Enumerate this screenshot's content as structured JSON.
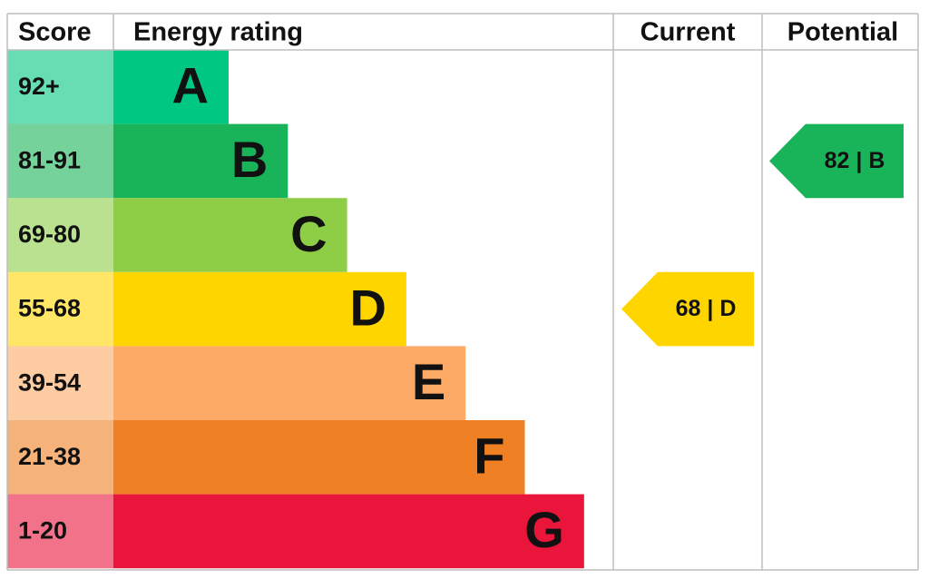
{
  "header": {
    "score": "Score",
    "rating": "Energy rating",
    "current": "Current",
    "potential": "Potential"
  },
  "bands": [
    {
      "score": "92+",
      "letter": "A",
      "color": "#00c781"
    },
    {
      "score": "81-91",
      "letter": "B",
      "color": "#19b459"
    },
    {
      "score": "69-80",
      "letter": "C",
      "color": "#8dce46"
    },
    {
      "score": "55-68",
      "letter": "D",
      "color": "#ffd500"
    },
    {
      "score": "39-54",
      "letter": "E",
      "color": "#fcaa65"
    },
    {
      "score": "21-38",
      "letter": "F",
      "color": "#ef8023"
    },
    {
      "score": "1-20",
      "letter": "G",
      "color": "#e9153b"
    }
  ],
  "current": {
    "label": "68 | D"
  },
  "potential": {
    "label": "82 | B"
  }
}
